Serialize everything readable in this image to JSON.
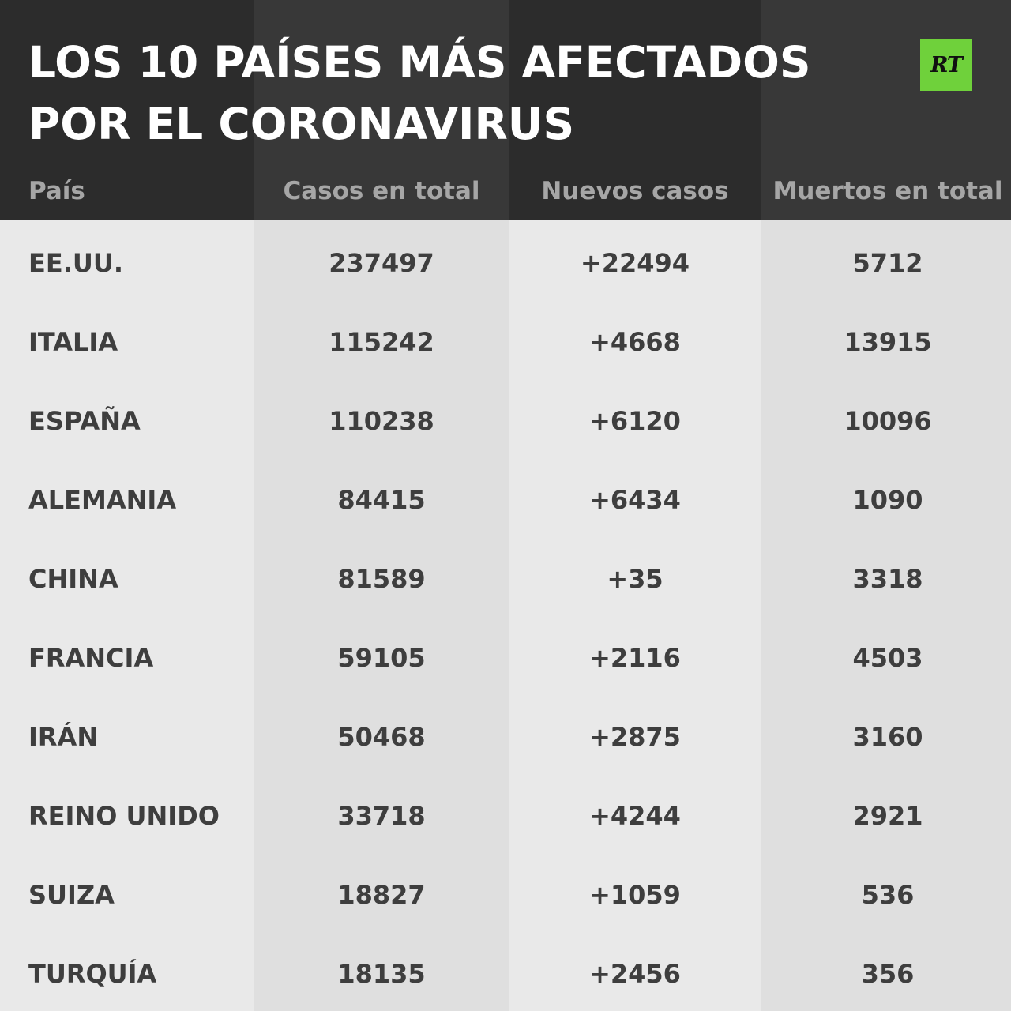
{
  "title_lines": [
    "LOS 10 PAÍSES MÁS AFECTADOS",
    "POR EL CORONAVIRUS"
  ],
  "logo_text": "RT",
  "colors": {
    "header_bg": "#2c2c2c",
    "header_text": "#ffffff",
    "column_header_text": "#a6a6a6",
    "body_bg": "#e6e6e6",
    "body_text": "#3e3e3e",
    "logo_bg": "#6fd13b"
  },
  "chart_data": {
    "type": "table",
    "title": "LOS 10 PAÍSES MÁS AFECTADOS POR EL CORONAVIRUS",
    "columns": [
      "País",
      "Casos en total",
      "Nuevos casos",
      "Muertos en total"
    ],
    "rows": [
      [
        "EE.UU.",
        "237497",
        "+22494",
        "5712"
      ],
      [
        "ITALIA",
        "115242",
        "+4668",
        "13915"
      ],
      [
        "ESPAÑA",
        "110238",
        "+6120",
        "10096"
      ],
      [
        "ALEMANIA",
        "84415",
        "+6434",
        "1090"
      ],
      [
        "CHINA",
        "81589",
        "+35",
        "3318"
      ],
      [
        "FRANCIA",
        "59105",
        "+2116",
        "4503"
      ],
      [
        "IRÁN",
        "50468",
        "+2875",
        "3160"
      ],
      [
        "REINO UNIDO",
        "33718",
        "+4244",
        "2921"
      ],
      [
        "SUIZA",
        "18827",
        "+1059",
        "536"
      ],
      [
        "TURQUÍA",
        "18135",
        "+2456",
        "356"
      ]
    ]
  }
}
